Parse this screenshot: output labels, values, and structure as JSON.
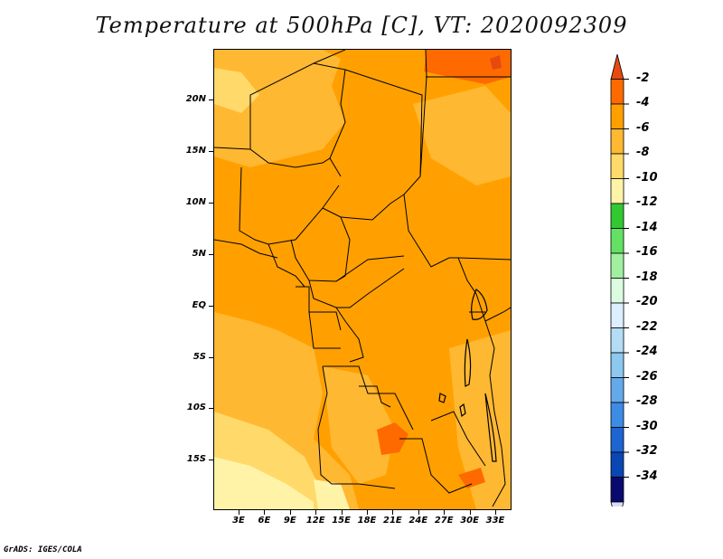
{
  "title": "Temperature at 500hPa [C], VT: 2020092309",
  "credit": "GrADS: IGES/COLA",
  "lat_labels": [
    "20N",
    "15N",
    "10N",
    "5N",
    "EQ",
    "5S",
    "10S",
    "15S"
  ],
  "lon_labels": [
    "3E",
    "6E",
    "9E",
    "12E",
    "15E",
    "18E",
    "21E",
    "24E",
    "27E",
    "30E",
    "33E"
  ],
  "colorbar": {
    "labels": [
      "-2",
      "-4",
      "-6",
      "-8",
      "-10",
      "-12",
      "-14",
      "-16",
      "-18",
      "-20",
      "-22",
      "-24",
      "-26",
      "-28",
      "-30",
      "-32",
      "-34"
    ],
    "colors": [
      "#e64a10",
      "#ff6a00",
      "#ffa000",
      "#ffb832",
      "#ffd96a",
      "#fff3a8",
      "#32c832",
      "#64e164",
      "#a0f0a0",
      "#dcfce0",
      "#dceeff",
      "#b4dcf5",
      "#8cc8f0",
      "#64aaeb",
      "#3c8ce6",
      "#1e64d2",
      "#0a46b4",
      "#0a0a6e",
      "#dcdcf5"
    ]
  }
}
